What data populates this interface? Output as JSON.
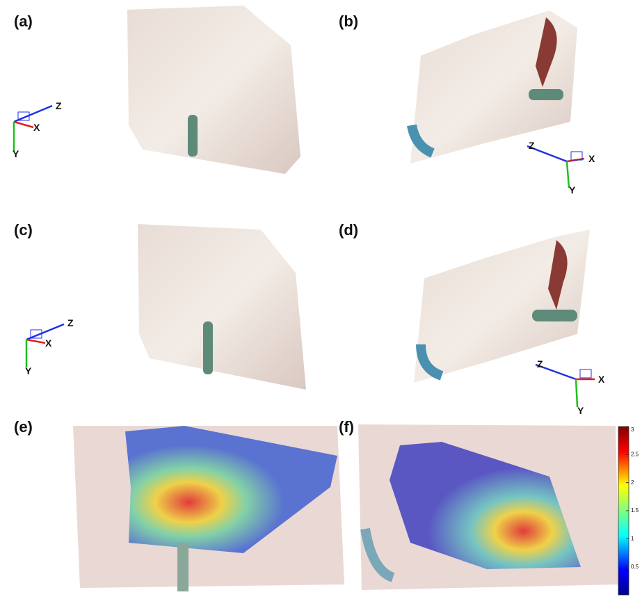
{
  "panels": [
    {
      "label": "(a)"
    },
    {
      "label": "(b)"
    },
    {
      "label": "(c)"
    },
    {
      "label": "(d)"
    },
    {
      "label": "(e)"
    },
    {
      "label": "(f)"
    }
  ],
  "frames": [
    {
      "z": "Z",
      "x": "X",
      "y": "Y"
    },
    {
      "z": "Z",
      "x": "X",
      "y": "Y"
    },
    {
      "z": "Z",
      "x": "X",
      "y": "Y"
    },
    {
      "z": "Z",
      "x": "X",
      "y": "Y"
    }
  ],
  "colorbar": {
    "ylim": [
      0,
      3
    ],
    "yticks": [
      0.5,
      1,
      1.5,
      2,
      2.5,
      3
    ]
  }
}
